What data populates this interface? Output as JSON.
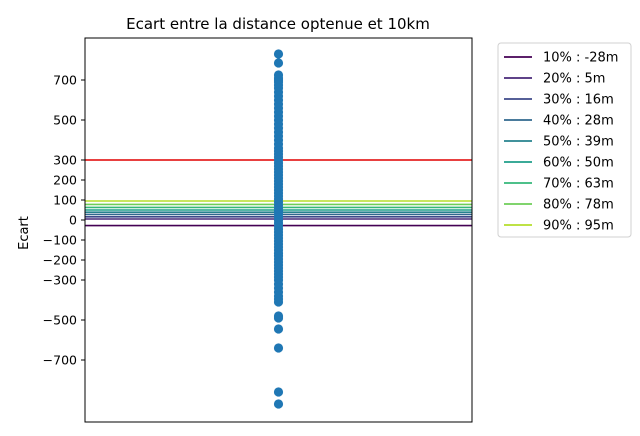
{
  "chart_data": {
    "type": "scatter",
    "title": "Ecart entre la distance optenue et 10km",
    "xlabel": "",
    "ylabel": "Ecart",
    "ylim": [
      -1000,
      920
    ],
    "grid": false,
    "y_ticks": [
      {
        "value": 700,
        "label": "700"
      },
      {
        "value": 500,
        "label": "500"
      },
      {
        "value": 300,
        "label": "300"
      },
      {
        "value": 200,
        "label": "200"
      },
      {
        "value": 100,
        "label": "100"
      },
      {
        "value": 0,
        "label": "0"
      },
      {
        "value": -100,
        "label": "−100"
      },
      {
        "value": -200,
        "label": "−200"
      },
      {
        "value": -300,
        "label": "−300"
      },
      {
        "value": -500,
        "label": "−500"
      },
      {
        "value": -700,
        "label": "−700"
      }
    ],
    "scatter": {
      "color": "#1f77b4",
      "x": 0,
      "y": [
        830,
        785,
        725,
        710,
        700,
        690,
        675,
        660,
        640,
        620,
        600,
        580,
        560,
        540,
        520,
        500,
        480,
        460,
        440,
        420,
        400,
        380,
        360,
        345,
        330,
        315,
        300,
        285,
        270,
        255,
        240,
        225,
        210,
        195,
        180,
        165,
        150,
        135,
        120,
        105,
        90,
        75,
        60,
        45,
        30,
        15,
        0,
        -15,
        -30,
        -45,
        -60,
        -75,
        -90,
        -105,
        -120,
        -135,
        -150,
        -165,
        -180,
        -195,
        -210,
        -225,
        -240,
        -255,
        -270,
        -285,
        -300,
        -320,
        -340,
        -360,
        -380,
        -395,
        -410,
        -480,
        -490,
        -545,
        -640,
        -860,
        -920
      ]
    },
    "reference_line": {
      "value": 300,
      "color": "#e00000"
    },
    "series": [
      {
        "name": "10% : -28m",
        "value": -28,
        "color": "#440154"
      },
      {
        "name": "20% : 5m",
        "value": 5,
        "color": "#482878"
      },
      {
        "name": "30% : 16m",
        "value": 16,
        "color": "#3e4989"
      },
      {
        "name": "40% : 28m",
        "value": 28,
        "color": "#31688e"
      },
      {
        "name": "50% : 39m",
        "value": 39,
        "color": "#26828e"
      },
      {
        "name": "60% : 50m",
        "value": 50,
        "color": "#1f9e89"
      },
      {
        "name": "70% : 63m",
        "value": 63,
        "color": "#35b779"
      },
      {
        "name": "80% : 78m",
        "value": 78,
        "color": "#6ece58"
      },
      {
        "name": "90% : 95m",
        "value": 95,
        "color": "#b5de2b"
      }
    ],
    "legend_position": "outside-right"
  }
}
